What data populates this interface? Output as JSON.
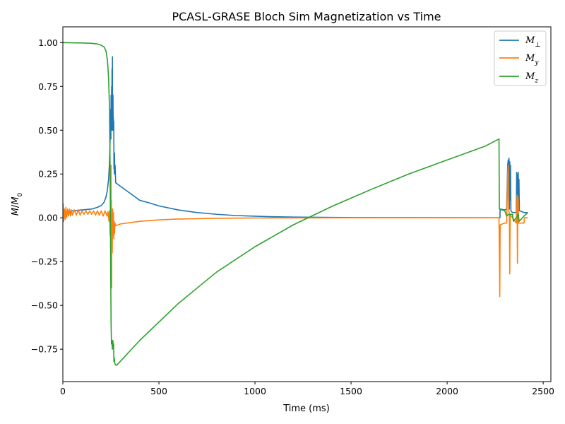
{
  "chart_data": {
    "type": "line",
    "title": "PCASL-GRASE Bloch Sim Magnetization vs Time",
    "xlabel": "Time (ms)",
    "ylabel": "M/M0",
    "xlim": [
      0,
      2540
    ],
    "ylim": [
      -0.935,
      1.09
    ],
    "xticks": [
      0,
      500,
      1000,
      1500,
      2000,
      2500
    ],
    "yticks": [
      -0.75,
      -0.5,
      -0.25,
      0.0,
      0.25,
      0.5,
      0.75,
      1.0
    ],
    "ytick_labels": [
      "−0.75",
      "−0.50",
      "−0.25",
      "0.00",
      "0.25",
      "0.50",
      "0.75",
      "1.00"
    ],
    "grid": false,
    "legend_position": "top-right",
    "series": [
      {
        "name": "M⊥",
        "color": "#1f77b4",
        "points": [
          [
            0,
            0.03
          ],
          [
            20,
            0.035
          ],
          [
            50,
            0.04
          ],
          [
            100,
            0.045
          ],
          [
            150,
            0.05
          ],
          [
            180,
            0.06
          ],
          [
            200,
            0.07
          ],
          [
            215,
            0.09
          ],
          [
            225,
            0.12
          ],
          [
            232,
            0.16
          ],
          [
            238,
            0.22
          ],
          [
            242,
            0.3
          ],
          [
            245,
            0.4
          ],
          [
            247,
            0.5
          ],
          [
            248,
            0.55
          ],
          [
            249,
            0.62
          ],
          [
            250,
            0.45
          ],
          [
            251,
            0.7
          ],
          [
            252,
            0.55
          ],
          [
            253,
            0.6
          ],
          [
            254,
            0.75
          ],
          [
            255,
            0.5
          ],
          [
            256,
            0.85
          ],
          [
            257,
            0.65
          ],
          [
            258,
            0.92
          ],
          [
            259,
            0.55
          ],
          [
            260,
            0.5
          ],
          [
            261,
            0.7
          ],
          [
            262,
            0.53
          ],
          [
            263,
            0.57
          ],
          [
            264,
            0.52
          ],
          [
            265,
            0.55
          ],
          [
            266,
            0.28
          ],
          [
            267,
            0.34
          ],
          [
            268,
            0.25
          ],
          [
            269,
            0.37
          ],
          [
            270,
            0.28
          ],
          [
            272,
            0.3
          ],
          [
            275,
            0.2
          ],
          [
            300,
            0.18
          ],
          [
            350,
            0.14
          ],
          [
            400,
            0.1
          ],
          [
            450,
            0.085
          ],
          [
            500,
            0.068
          ],
          [
            600,
            0.045
          ],
          [
            700,
            0.03
          ],
          [
            800,
            0.02
          ],
          [
            900,
            0.013
          ],
          [
            1000,
            0.009
          ],
          [
            1100,
            0.006
          ],
          [
            1200,
            0.004
          ],
          [
            1400,
            0.002
          ],
          [
            1600,
            0.001
          ],
          [
            2000,
            0.0005
          ],
          [
            2275,
            0.0003
          ],
          [
            2276,
            0.05
          ],
          [
            2300,
            0.045
          ],
          [
            2310,
            0.05
          ],
          [
            2315,
            0.3
          ],
          [
            2318,
            0.33
          ],
          [
            2320,
            0.1
          ],
          [
            2322,
            0.34
          ],
          [
            2324,
            0.05
          ],
          [
            2326,
            0.32
          ],
          [
            2328,
            0.1
          ],
          [
            2330,
            0.3
          ],
          [
            2332,
            0.04
          ],
          [
            2340,
            0.03
          ],
          [
            2360,
            0.03
          ],
          [
            2362,
            0.26
          ],
          [
            2364,
            0.12
          ],
          [
            2366,
            0.25
          ],
          [
            2368,
            0.08
          ],
          [
            2370,
            0.26
          ],
          [
            2372,
            0.1
          ],
          [
            2374,
            0.22
          ],
          [
            2376,
            0.04
          ],
          [
            2390,
            0.035
          ],
          [
            2400,
            0.03
          ],
          [
            2420,
            0.03
          ]
        ]
      },
      {
        "name": "My",
        "color": "#ff7f0e",
        "points": [
          [
            0,
            -0.03
          ],
          [
            2,
            0.08
          ],
          [
            4,
            -0.02
          ],
          [
            8,
            0.05
          ],
          [
            12,
            -0.01
          ],
          [
            16,
            0.06
          ],
          [
            20,
            0.0
          ],
          [
            25,
            0.05
          ],
          [
            30,
            0.01
          ],
          [
            35,
            0.05
          ],
          [
            40,
            0.01
          ],
          [
            45,
            0.045
          ],
          [
            50,
            0.015
          ],
          [
            60,
            0.045
          ],
          [
            70,
            0.015
          ],
          [
            80,
            0.045
          ],
          [
            90,
            0.015
          ],
          [
            100,
            0.04
          ],
          [
            110,
            0.02
          ],
          [
            120,
            0.04
          ],
          [
            130,
            0.02
          ],
          [
            140,
            0.04
          ],
          [
            150,
            0.02
          ],
          [
            160,
            0.04
          ],
          [
            170,
            0.015
          ],
          [
            180,
            0.04
          ],
          [
            190,
            0.015
          ],
          [
            200,
            0.04
          ],
          [
            210,
            0.01
          ],
          [
            220,
            0.04
          ],
          [
            230,
            0.01
          ],
          [
            235,
            0.035
          ],
          [
            240,
            -0.02
          ],
          [
            243,
            0.04
          ],
          [
            246,
            -0.1
          ],
          [
            248,
            0.1
          ],
          [
            250,
            -0.2
          ],
          [
            251,
            0.3
          ],
          [
            252,
            -0.35
          ],
          [
            253,
            0.1
          ],
          [
            254,
            -0.4
          ],
          [
            255,
            0.05
          ],
          [
            257,
            -0.2
          ],
          [
            259,
            0.05
          ],
          [
            261,
            -0.1
          ],
          [
            263,
            0.03
          ],
          [
            265,
            -0.12
          ],
          [
            267,
            -0.02
          ],
          [
            269,
            -0.09
          ],
          [
            271,
            -0.03
          ],
          [
            275,
            -0.045
          ],
          [
            300,
            -0.035
          ],
          [
            400,
            -0.02
          ],
          [
            500,
            -0.012
          ],
          [
            600,
            -0.007
          ],
          [
            800,
            -0.003
          ],
          [
            1000,
            -0.001
          ],
          [
            1500,
            0.0
          ],
          [
            2000,
            0.0
          ],
          [
            2270,
            0.0
          ],
          [
            2272,
            -0.2
          ],
          [
            2274,
            -0.45
          ],
          [
            2276,
            -0.04
          ],
          [
            2300,
            -0.03
          ],
          [
            2310,
            -0.03
          ],
          [
            2315,
            0.25
          ],
          [
            2318,
            0.3
          ],
          [
            2320,
            0.05
          ],
          [
            2324,
            0.02
          ],
          [
            2326,
            -0.32
          ],
          [
            2328,
            0.02
          ],
          [
            2340,
            0.0
          ],
          [
            2360,
            -0.03
          ],
          [
            2362,
            0.05
          ],
          [
            2364,
            0.13
          ],
          [
            2366,
            -0.26
          ],
          [
            2368,
            0.12
          ],
          [
            2370,
            0.1
          ],
          [
            2372,
            -0.03
          ],
          [
            2400,
            -0.03
          ],
          [
            2402,
            0.0
          ],
          [
            2420,
            0.0
          ]
        ]
      },
      {
        "name": "Mz",
        "color": "#2ca02c",
        "points": [
          [
            0,
            1.0
          ],
          [
            50,
            0.999
          ],
          [
            100,
            0.998
          ],
          [
            150,
            0.996
          ],
          [
            180,
            0.992
          ],
          [
            200,
            0.985
          ],
          [
            215,
            0.975
          ],
          [
            225,
            0.95
          ],
          [
            232,
            0.9
          ],
          [
            238,
            0.8
          ],
          [
            242,
            0.65
          ],
          [
            245,
            0.4
          ],
          [
            247,
            0.1
          ],
          [
            249,
            -0.3
          ],
          [
            251,
            -0.6
          ],
          [
            253,
            -0.72
          ],
          [
            255,
            -0.7
          ],
          [
            258,
            -0.75
          ],
          [
            260,
            -0.7
          ],
          [
            262,
            -0.73
          ],
          [
            264,
            -0.72
          ],
          [
            266,
            -0.82
          ],
          [
            268,
            -0.8
          ],
          [
            270,
            -0.83
          ],
          [
            275,
            -0.84
          ],
          [
            280,
            -0.842
          ],
          [
            400,
            -0.7
          ],
          [
            600,
            -0.49
          ],
          [
            800,
            -0.31
          ],
          [
            1000,
            -0.165
          ],
          [
            1200,
            -0.04
          ],
          [
            1400,
            0.065
          ],
          [
            1600,
            0.16
          ],
          [
            1800,
            0.25
          ],
          [
            2000,
            0.33
          ],
          [
            2200,
            0.41
          ],
          [
            2270,
            0.45
          ],
          [
            2272,
            0.05
          ],
          [
            2300,
            0.04
          ],
          [
            2310,
            0.01
          ],
          [
            2320,
            0.02
          ],
          [
            2330,
            0.02
          ],
          [
            2340,
            0.02
          ],
          [
            2345,
            -0.02
          ],
          [
            2360,
            0.0
          ],
          [
            2370,
            0.02
          ],
          [
            2375,
            -0.02
          ],
          [
            2400,
            0.01
          ],
          [
            2420,
            0.03
          ]
        ]
      }
    ]
  }
}
